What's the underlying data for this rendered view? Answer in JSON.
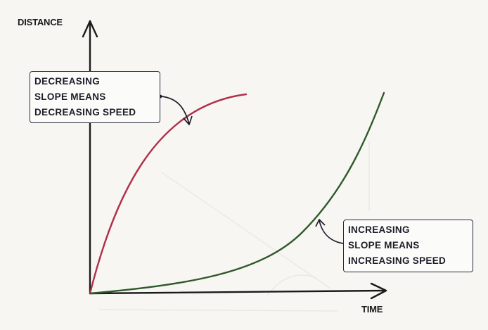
{
  "axes": {
    "y_label": "DISTANCE",
    "x_label": "TIME"
  },
  "curves": [
    {
      "id": "decreasing-slope",
      "color": "#b0304a"
    },
    {
      "id": "increasing-slope",
      "color": "#2f5a2a"
    }
  ],
  "annotations": {
    "decreasing": {
      "lines": [
        "DECREASING",
        "SLOPE MEANS",
        "DECREASING SPEED"
      ]
    },
    "increasing": {
      "lines": [
        "INCREASING",
        "SLOPE MEANS",
        "INCREASING SPEED"
      ]
    }
  }
}
